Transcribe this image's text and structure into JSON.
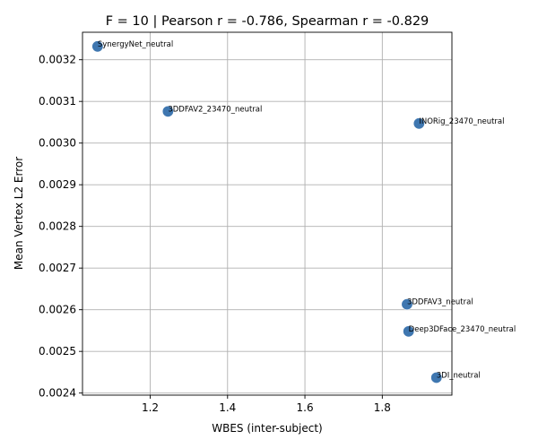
{
  "chart_data": {
    "type": "scatter",
    "title": "F = 10 | Pearson r = -0.786, Spearman r = -0.829",
    "xlabel": "WBES (inter-subject)",
    "ylabel": "Mean Vertex L2 Error",
    "xlim": [
      1.025,
      1.98
    ],
    "ylim": [
      0.002395,
      0.003266
    ],
    "xticks": [
      1.2,
      1.4,
      1.6,
      1.8
    ],
    "xtick_labels": [
      "1.2",
      "1.4",
      "1.6",
      "1.8"
    ],
    "yticks": [
      0.0024,
      0.0025,
      0.0026,
      0.0027,
      0.0028,
      0.0029,
      0.003,
      0.0031,
      0.0032
    ],
    "ytick_labels": [
      "0.0024",
      "0.0025",
      "0.0026",
      "0.0027",
      "0.0028",
      "0.0029",
      "0.0030",
      "0.0031",
      "0.0032"
    ],
    "grid": true,
    "marker_color": "#3f77b0",
    "points": [
      {
        "label": "SynergyNet_neutral",
        "x": 1.064,
        "y": 0.003232
      },
      {
        "label": "3DDFAV2_23470_neutral",
        "x": 1.246,
        "y": 0.003076
      },
      {
        "label": "INORig_23470_neutral",
        "x": 1.895,
        "y": 0.003047
      },
      {
        "label": "3DDFAV3_neutral",
        "x": 1.864,
        "y": 0.002613
      },
      {
        "label": "Deep3DFace_23470_neutral",
        "x": 1.868,
        "y": 0.002548
      },
      {
        "label": "3DI_neutral",
        "x": 1.94,
        "y": 0.002437
      }
    ]
  }
}
